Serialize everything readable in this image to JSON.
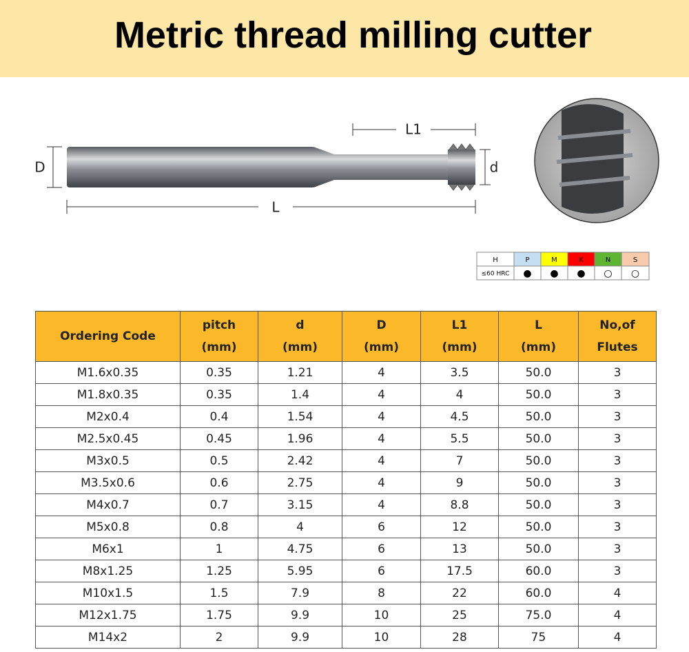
{
  "header": {
    "title": "Metric thread milling cutter"
  },
  "diagram": {
    "D": "D",
    "d": "d",
    "L1": "L1",
    "L": "L"
  },
  "material": {
    "header": [
      "H",
      "P",
      "M",
      "K",
      "N",
      "S"
    ],
    "row": [
      "≤60 HRC",
      "●",
      "●",
      "●",
      "○",
      "○"
    ]
  },
  "table": {
    "header": [
      [
        "Ordering Code"
      ],
      [
        "pitch",
        "(mm)"
      ],
      [
        "d",
        "(mm)"
      ],
      [
        "D",
        "(mm)"
      ],
      [
        "L1",
        "(mm)"
      ],
      [
        "L",
        "(mm)"
      ],
      [
        "No,of",
        "Flutes"
      ]
    ],
    "rows": [
      [
        "M1.6x0.35",
        "0.35",
        "1.21",
        "4",
        "3.5",
        "50.0",
        "3"
      ],
      [
        "M1.8x0.35",
        "0.35",
        "1.4",
        "4",
        "4",
        "50.0",
        "3"
      ],
      [
        "M2x0.4",
        "0.4",
        "1.54",
        "4",
        "4.5",
        "50.0",
        "3"
      ],
      [
        "M2.5x0.45",
        "0.45",
        "1.96",
        "4",
        "5.5",
        "50.0",
        "3"
      ],
      [
        "M3x0.5",
        "0.5",
        "2.42",
        "4",
        "7",
        "50.0",
        "3"
      ],
      [
        "M3.5x0.6",
        "0.6",
        "2.75",
        "4",
        "9",
        "50.0",
        "3"
      ],
      [
        "M4x0.7",
        "0.7",
        "3.15",
        "4",
        "8.8",
        "50.0",
        "3"
      ],
      [
        "M5x0.8",
        "0.8",
        "4",
        "6",
        "12",
        "50.0",
        "3"
      ],
      [
        "M6x1",
        "1",
        "4.75",
        "6",
        "13",
        "50.0",
        "3"
      ],
      [
        "M8x1.25",
        "1.25",
        "5.95",
        "6",
        "17.5",
        "60.0",
        "3"
      ],
      [
        "M10x1.5",
        "1.5",
        "7.9",
        "8",
        "22",
        "60.0",
        "4"
      ],
      [
        "M12x1.75",
        "1.75",
        "9.9",
        "10",
        "25",
        "75.0",
        "4"
      ],
      [
        "M14x2",
        "2",
        "9.9",
        "10",
        "28",
        "75",
        "4"
      ]
    ]
  }
}
